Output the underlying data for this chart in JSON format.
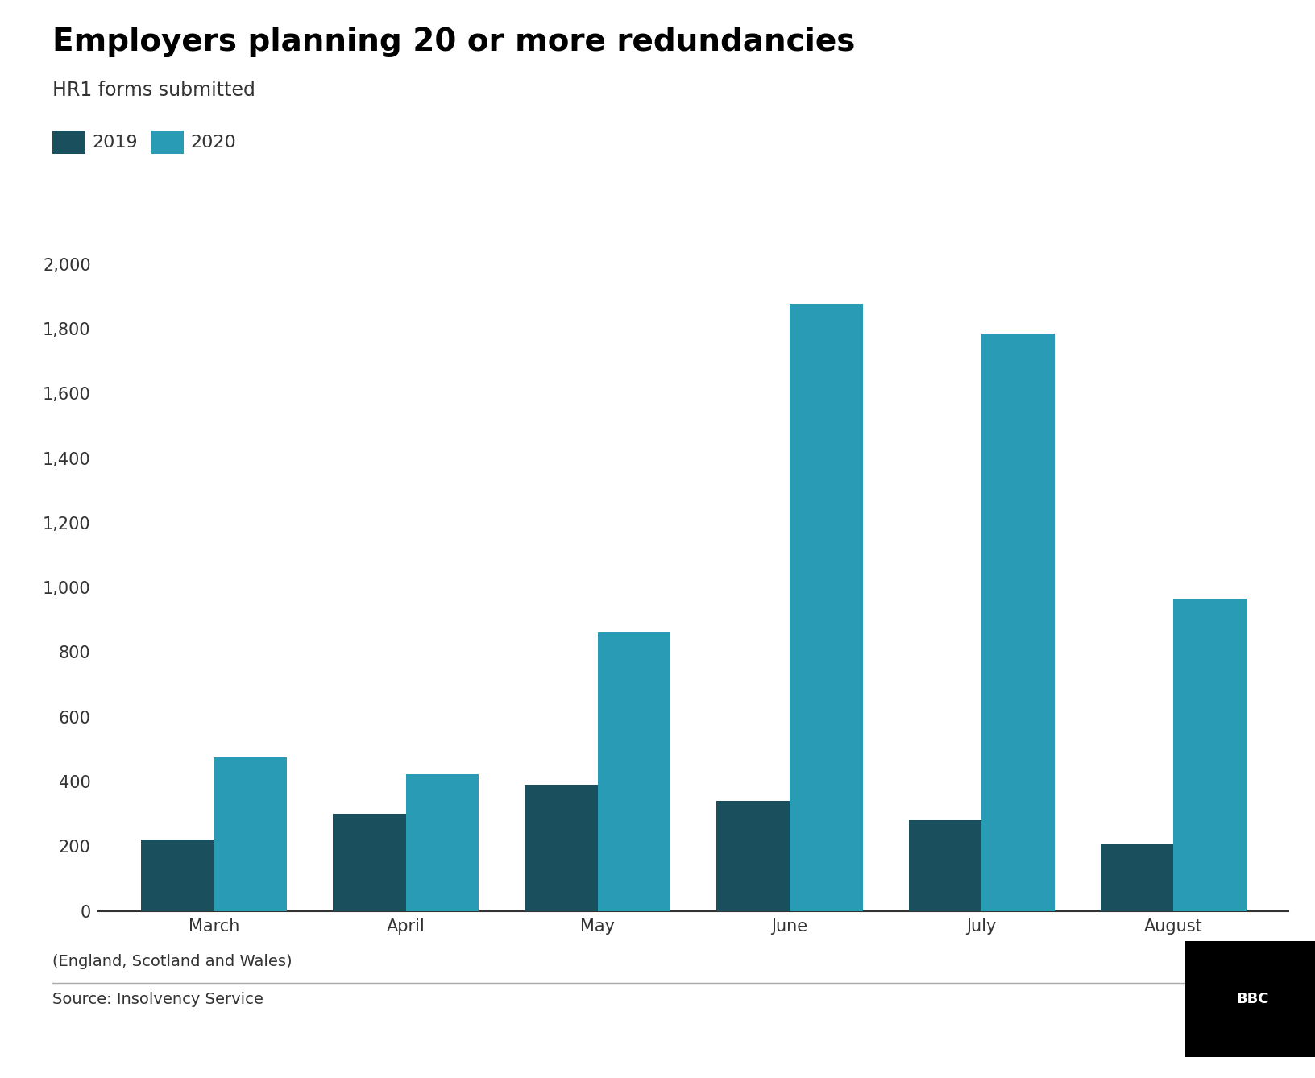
{
  "title": "Employers planning 20 or more redundancies",
  "subtitle": "HR1 forms submitted",
  "categories": [
    "March",
    "April",
    "May",
    "June",
    "July",
    "August"
  ],
  "values_2019": [
    220,
    300,
    390,
    340,
    280,
    207
  ],
  "values_2020": [
    475,
    422,
    860,
    1878,
    1785,
    965
  ],
  "color_2019": "#1a4f5e",
  "color_2020": "#2a9bb5",
  "ylim": [
    0,
    2000
  ],
  "yticks": [
    0,
    200,
    400,
    600,
    800,
    1000,
    1200,
    1400,
    1600,
    1800,
    2000
  ],
  "legend_2019": "2019",
  "legend_2020": "2020",
  "footer_left": "(England, Scotland and Wales)",
  "source": "Source: Insolvency Service",
  "bbc_logo": "BBC",
  "background_color": "#ffffff",
  "title_fontsize": 28,
  "subtitle_fontsize": 17,
  "axis_label_fontsize": 15,
  "legend_fontsize": 16,
  "footer_fontsize": 14,
  "bar_width": 0.38
}
